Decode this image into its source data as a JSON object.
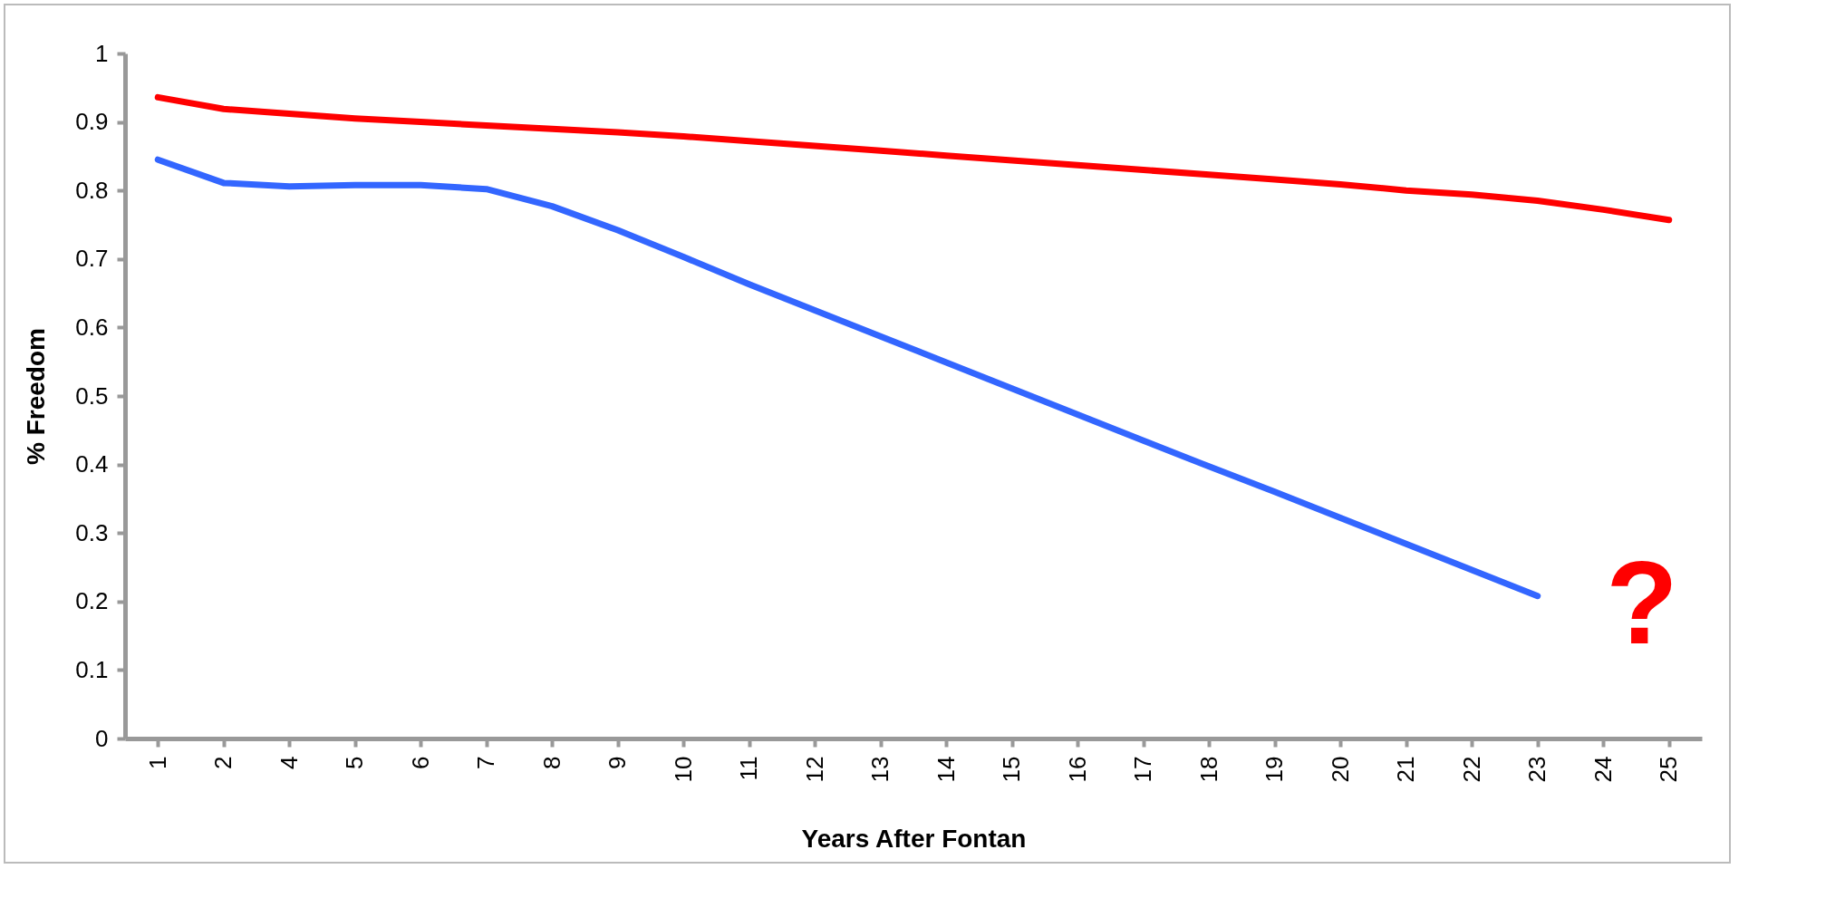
{
  "chart_data": {
    "type": "line",
    "xlabel": "Years After Fontan",
    "ylabel": "% Freedom",
    "categories": [
      "1",
      "2",
      "4",
      "5",
      "6",
      "7",
      "8",
      "9",
      "10",
      "11",
      "12",
      "13",
      "14",
      "15",
      "16",
      "17",
      "18",
      "19",
      "20",
      "21",
      "22",
      "23",
      "24",
      "25"
    ],
    "ylim": [
      0,
      1
    ],
    "yticks": [
      0,
      0.1,
      0.2,
      0.3,
      0.4,
      0.5,
      0.6,
      0.7,
      0.8,
      0.9,
      1
    ],
    "grid": false,
    "legend": false,
    "marker": "none",
    "line_style": "solid",
    "annotations": [
      "?"
    ],
    "series": [
      {
        "color": "#ff0000",
        "values": [
          0.936,
          0.919,
          0.912,
          0.905,
          0.9,
          0.895,
          0.89,
          0.885,
          0.879,
          0.872,
          0.865,
          0.858,
          0.851,
          0.844,
          0.837,
          0.83,
          0.823,
          0.816,
          0.809,
          0.8,
          0.794,
          0.785,
          0.772,
          0.757
        ]
      },
      {
        "color": "#3366ff",
        "values": [
          0.845,
          0.811,
          0.806,
          0.808,
          0.808,
          0.802,
          0.777,
          0.742,
          0.703,
          0.663,
          0.625,
          0.587,
          0.549,
          0.511,
          0.473,
          0.435,
          0.397,
          0.36,
          0.322,
          0.284,
          0.246,
          0.208,
          null,
          null
        ]
      }
    ]
  }
}
